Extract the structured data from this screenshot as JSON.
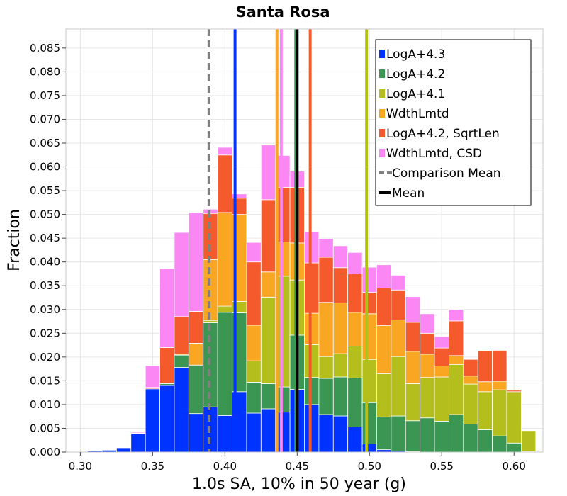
{
  "chart_data": {
    "type": "bar",
    "stacked": true,
    "title": "Santa Rosa",
    "xlabel": "1.0s SA, 10% in 50 year (g)",
    "ylabel": "Fraction",
    "xlim": [
      0.29,
      0.62
    ],
    "ylim": [
      0.0,
      0.089
    ],
    "bin_width": 0.01,
    "grid": true,
    "legend_position": "top-right",
    "x_ticks": [
      "0.30",
      "0.35",
      "0.40",
      "0.45",
      "0.50",
      "0.55",
      "0.60"
    ],
    "x_tick_values": [
      0.3,
      0.35,
      0.4,
      0.45,
      0.5,
      0.55,
      0.6
    ],
    "y_ticks": [
      "0.000",
      "0.005",
      "0.010",
      "0.015",
      "0.020",
      "0.025",
      "0.030",
      "0.035",
      "0.040",
      "0.045",
      "0.050",
      "0.055",
      "0.060",
      "0.065",
      "0.070",
      "0.075",
      "0.080",
      "0.085"
    ],
    "y_tick_values": [
      0.0,
      0.005,
      0.01,
      0.015,
      0.02,
      0.025,
      0.03,
      0.035,
      0.04,
      0.045,
      0.05,
      0.055,
      0.06,
      0.065,
      0.07,
      0.075,
      0.08,
      0.085
    ],
    "bin_centers": [
      0.3,
      0.31,
      0.32,
      0.33,
      0.34,
      0.35,
      0.36,
      0.37,
      0.38,
      0.39,
      0.4,
      0.41,
      0.42,
      0.43,
      0.44,
      0.45,
      0.46,
      0.47,
      0.48,
      0.49,
      0.5,
      0.51,
      0.52,
      0.53,
      0.54,
      0.55,
      0.56,
      0.57,
      0.58,
      0.59,
      0.6,
      0.61
    ],
    "series": [
      {
        "name": "LogA+4.3",
        "color": "#0033ff",
        "values": [
          0.0001,
          0.0002,
          0.0004,
          0.0009,
          0.0039,
          0.0133,
          0.014,
          0.0178,
          0.0081,
          0.0095,
          0.0077,
          0.0127,
          0.0082,
          0.0091,
          0.0084,
          0.0132,
          0.01,
          0.0079,
          0.0076,
          0.0053,
          0.0017,
          0.0005,
          0.0002,
          0.0001,
          0,
          0,
          0,
          0,
          0,
          0,
          0,
          0
        ]
      },
      {
        "name": "LogA+4.2",
        "color": "#3a9652",
        "values": [
          0,
          0,
          0,
          0,
          0,
          0,
          0.0004,
          0.0026,
          0.0102,
          0.0177,
          0.0217,
          0.0166,
          0.0065,
          0.0053,
          0.0053,
          0.0114,
          0.0057,
          0.0076,
          0.0082,
          0.0103,
          0.0087,
          0.0069,
          0.0074,
          0.0065,
          0.0072,
          0.0065,
          0.0079,
          0.0059,
          0.0047,
          0.0034,
          0.0019,
          0.0001
        ]
      },
      {
        "name": "LogA+4.1",
        "color": "#b4bf1e",
        "values": [
          0,
          0,
          0,
          0,
          0,
          0,
          0,
          0,
          0,
          0.0005,
          0.0013,
          0.0024,
          0.0045,
          0.0182,
          0.0233,
          0.0116,
          0.0069,
          0.0046,
          0.0049,
          0.0067,
          0.0091,
          0.0091,
          0.0125,
          0.0078,
          0.0085,
          0.0093,
          0.0105,
          0.0084,
          0.008,
          0.0097,
          0.0108,
          0.0044
        ]
      },
      {
        "name": "WdthLmtd",
        "color": "#f9a623",
        "values": [
          0,
          0,
          0,
          0,
          0,
          0,
          0.0001,
          0.0002,
          0.0046,
          0.0128,
          0.0197,
          0.0183,
          0.0075,
          0.0053,
          0.0072,
          0.0078,
          0.0066,
          0.0114,
          0.0107,
          0.0071,
          0.0096,
          0.0101,
          0.0077,
          0.0068,
          0.0049,
          0.0023,
          0.0019,
          0.0017,
          0.0021,
          0.0018,
          0,
          0
        ]
      },
      {
        "name": "LogA+4.2, SqrtLen",
        "color": "#f45a2b",
        "values": [
          0,
          0,
          0,
          0,
          0.0001,
          0.0003,
          0.0075,
          0.0079,
          0.0067,
          0.0097,
          0.0121,
          0.0034,
          0.0133,
          0.0152,
          0.0115,
          0.0117,
          0.0106,
          0.0095,
          0.0074,
          0.0081,
          0.0045,
          0.0079,
          0.0063,
          0.0061,
          0.0044,
          0.0038,
          0.0073,
          0.0035,
          0.0065,
          0.0065,
          0.0003,
          0
        ]
      },
      {
        "name": "WdthLmtd, CSD",
        "color": "#fb87f4",
        "values": [
          0,
          0,
          0,
          0,
          0.0002,
          0.0046,
          0.0166,
          0.0177,
          0.0208,
          0.0009,
          0.0016,
          0.0009,
          0.0041,
          0.0115,
          0.0067,
          0.0034,
          0.0065,
          0.0039,
          0.0046,
          0.0045,
          0.0053,
          0.0049,
          0.0031,
          0.0054,
          0.0041,
          0.0024,
          0.0024,
          0,
          0,
          0,
          0,
          0
        ]
      }
    ],
    "vertical_lines": [
      {
        "series": "LogA+4.3",
        "x": 0.407
      },
      {
        "series": "LogA+4.2",
        "x": 0.449
      },
      {
        "series": "LogA+4.1",
        "x": 0.498
      },
      {
        "series": "WdthLmtd",
        "x": 0.436
      },
      {
        "series": "LogA+4.2, SqrtLen",
        "x": 0.459
      },
      {
        "series": "WdthLmtd, CSD",
        "x": 0.439
      },
      {
        "series": "Comparison Mean",
        "x": 0.389,
        "style": "dashed",
        "color": "#808080"
      },
      {
        "series": "Mean",
        "x": 0.45,
        "color": "#000000"
      }
    ],
    "legend": [
      {
        "label": "LogA+4.3",
        "color": "#0033ff",
        "kind": "box"
      },
      {
        "label": "LogA+4.2",
        "color": "#3a9652",
        "kind": "box"
      },
      {
        "label": "LogA+4.1",
        "color": "#b4bf1e",
        "kind": "box"
      },
      {
        "label": "WdthLmtd",
        "color": "#f9a623",
        "kind": "box"
      },
      {
        "label": "LogA+4.2, SqrtLen",
        "color": "#f45a2b",
        "kind": "box"
      },
      {
        "label": "WdthLmtd, CSD",
        "color": "#fb87f4",
        "kind": "box"
      },
      {
        "label": "Comparison Mean",
        "color": "#808080",
        "kind": "dashed"
      },
      {
        "label": "Mean",
        "color": "#000000",
        "kind": "line"
      }
    ]
  }
}
